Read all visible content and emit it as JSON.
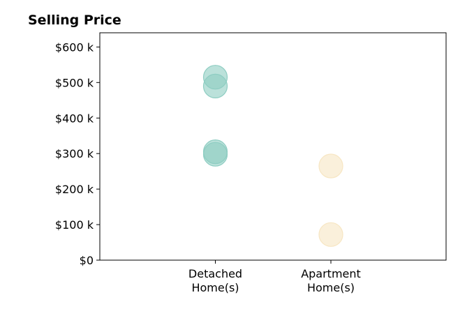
{
  "chart_data": {
    "type": "scatter",
    "title": "Selling Price",
    "xlabel": "",
    "ylabel": "",
    "categories": [
      "Detached\nHome(s)",
      "Apartment\nHome(s)"
    ],
    "ylim": [
      0,
      640000
    ],
    "yticks": [
      0,
      100000,
      200000,
      300000,
      400000,
      500000,
      600000
    ],
    "ytick_labels": [
      "$0",
      "$100 k",
      "$200 k",
      "$300 k",
      "$400 k",
      "$500 k",
      "$600 k"
    ],
    "grid": false,
    "series": [
      {
        "category": "Detached\nHome(s)",
        "color": "#8ecdc2",
        "values": [
          515000,
          490000,
          305000,
          298000
        ]
      },
      {
        "category": "Apartment\nHome(s)",
        "color": "#f7e6c3",
        "values": [
          265000,
          72000
        ]
      }
    ]
  }
}
